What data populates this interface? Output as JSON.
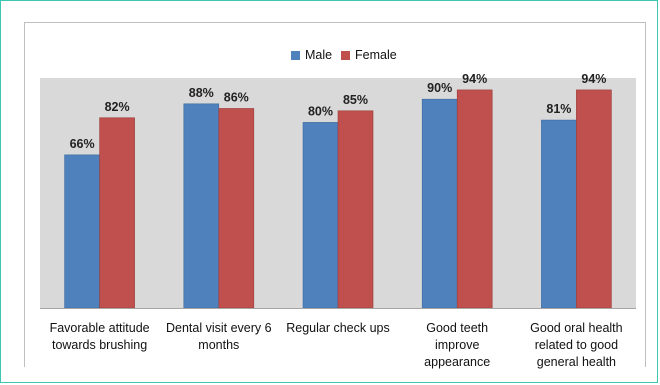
{
  "colors": {
    "male": "#4f81bd",
    "female": "#c0504d",
    "plot_bg": "#d9d9d9",
    "frame": "#3ec6b4"
  },
  "legend": {
    "male_label": "Male",
    "female_label": "Female",
    "placement": "top-center"
  },
  "chart_data": {
    "type": "bar",
    "title": "",
    "xlabel": "",
    "ylabel": "",
    "ylim": [
      0,
      100
    ],
    "grid": false,
    "categories": [
      [
        "Favorable attitude",
        "towards brushing"
      ],
      [
        "Dental visit every 6",
        "months"
      ],
      [
        "Regular check ups"
      ],
      [
        "Good teeth",
        "improve",
        "appearance"
      ],
      [
        "Good oral health",
        "related to good",
        "general health"
      ]
    ],
    "series": [
      {
        "name": "Male",
        "values": [
          66,
          88,
          80,
          90,
          81
        ],
        "labels": [
          "66%",
          "88%",
          "80%",
          "90%",
          "81%"
        ]
      },
      {
        "name": "Female",
        "values": [
          82,
          86,
          85,
          94,
          94
        ],
        "labels": [
          "82%",
          "86%",
          "85%",
          "94%",
          "94%"
        ]
      }
    ]
  }
}
